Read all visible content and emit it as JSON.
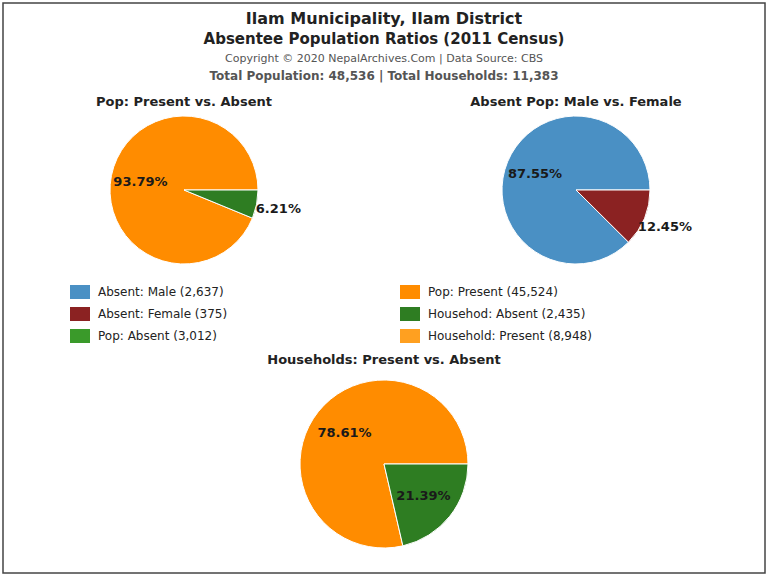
{
  "title": "Ilam Municipality, Ilam District",
  "subtitle": "Absentee Population Ratios (2011 Census)",
  "annotations": [
    "Copyright © 2020 NepalArchives.Com | Data Source: CBS",
    "Total Population: 48,536 | Total Households: 11,383"
  ],
  "legend_items": [
    {
      "name": "Absent: Male (2,637)",
      "color": "#4A90C4"
    },
    {
      "name": "Absent: Female (375)",
      "color": "#8B2222"
    },
    {
      "name": "Pop: Absent (3,012)",
      "color": "#3A9A2A"
    },
    {
      "name": "Pop: Present (45,524)",
      "color": "#FF8C00"
    },
    {
      "name": "Househod: Absent (2,435)",
      "color": "#2E7D22"
    },
    {
      "name": "Household: Present (8,948)",
      "color": "#FFA020"
    }
  ],
  "chart_data": [
    {
      "type": "pie",
      "title": "Pop: Present vs. Absent",
      "values": [
        93.79,
        6.21
      ],
      "value_labels": [
        "93.79%",
        "6.21%"
      ],
      "colors": [
        "#FF8C00",
        "#2E7D22"
      ],
      "data_labels": true
    },
    {
      "type": "pie",
      "title": "Absent Pop: Male vs. Female",
      "values": [
        87.55,
        12.45
      ],
      "value_labels": [
        "87.55%",
        "12.45%"
      ],
      "colors": [
        "#4A90C4",
        "#8B2222"
      ],
      "data_labels": true
    },
    {
      "type": "pie",
      "title": "Households: Present vs. Absent",
      "values": [
        78.61,
        21.39
      ],
      "value_labels": [
        "78.61%",
        "21.39%"
      ],
      "colors": [
        "#FF8C00",
        "#2E7D22"
      ],
      "data_labels": true
    }
  ]
}
